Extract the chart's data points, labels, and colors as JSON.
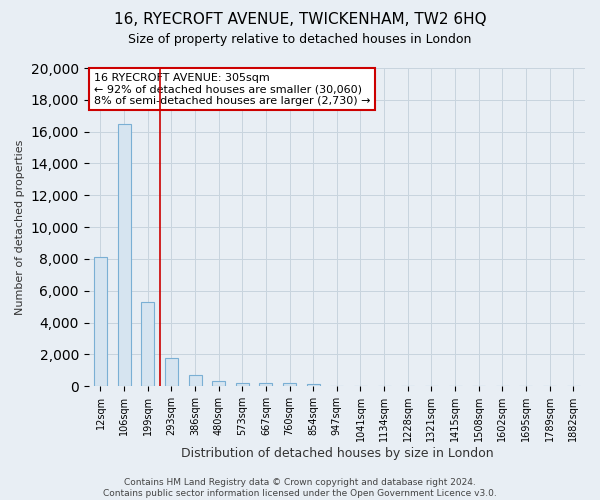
{
  "title_line1": "16, RYECROFT AVENUE, TWICKENHAM, TW2 6HQ",
  "title_line2": "Size of property relative to detached houses in London",
  "xlabel": "Distribution of detached houses by size in London",
  "ylabel": "Number of detached properties",
  "bar_color": "#d6e4f0",
  "bar_edge_color": "#7aafd4",
  "categories": [
    "12sqm",
    "106sqm",
    "199sqm",
    "293sqm",
    "386sqm",
    "480sqm",
    "573sqm",
    "667sqm",
    "760sqm",
    "854sqm",
    "947sqm",
    "1041sqm",
    "1134sqm",
    "1228sqm",
    "1321sqm",
    "1415sqm",
    "1508sqm",
    "1602sqm",
    "1695sqm",
    "1789sqm",
    "1882sqm"
  ],
  "values": [
    8100,
    16500,
    5300,
    1750,
    700,
    320,
    230,
    200,
    180,
    150,
    0,
    0,
    0,
    0,
    0,
    0,
    0,
    0,
    0,
    0,
    0
  ],
  "ylim": [
    0,
    20000
  ],
  "yticks": [
    0,
    2000,
    4000,
    6000,
    8000,
    10000,
    12000,
    14000,
    16000,
    18000,
    20000
  ],
  "annotation_text": "16 RYECROFT AVENUE: 305sqm\n← 92% of detached houses are smaller (30,060)\n8% of semi-detached houses are larger (2,730) →",
  "annotation_box_color": "#ffffff",
  "annotation_border_color": "#cc0000",
  "red_line_x": 2.5,
  "footnote": "Contains HM Land Registry data © Crown copyright and database right 2024.\nContains public sector information licensed under the Open Government Licence v3.0.",
  "bg_color": "#e8eef4",
  "grid_color": "#c8d4de",
  "plot_bg_color": "#e8eef4"
}
